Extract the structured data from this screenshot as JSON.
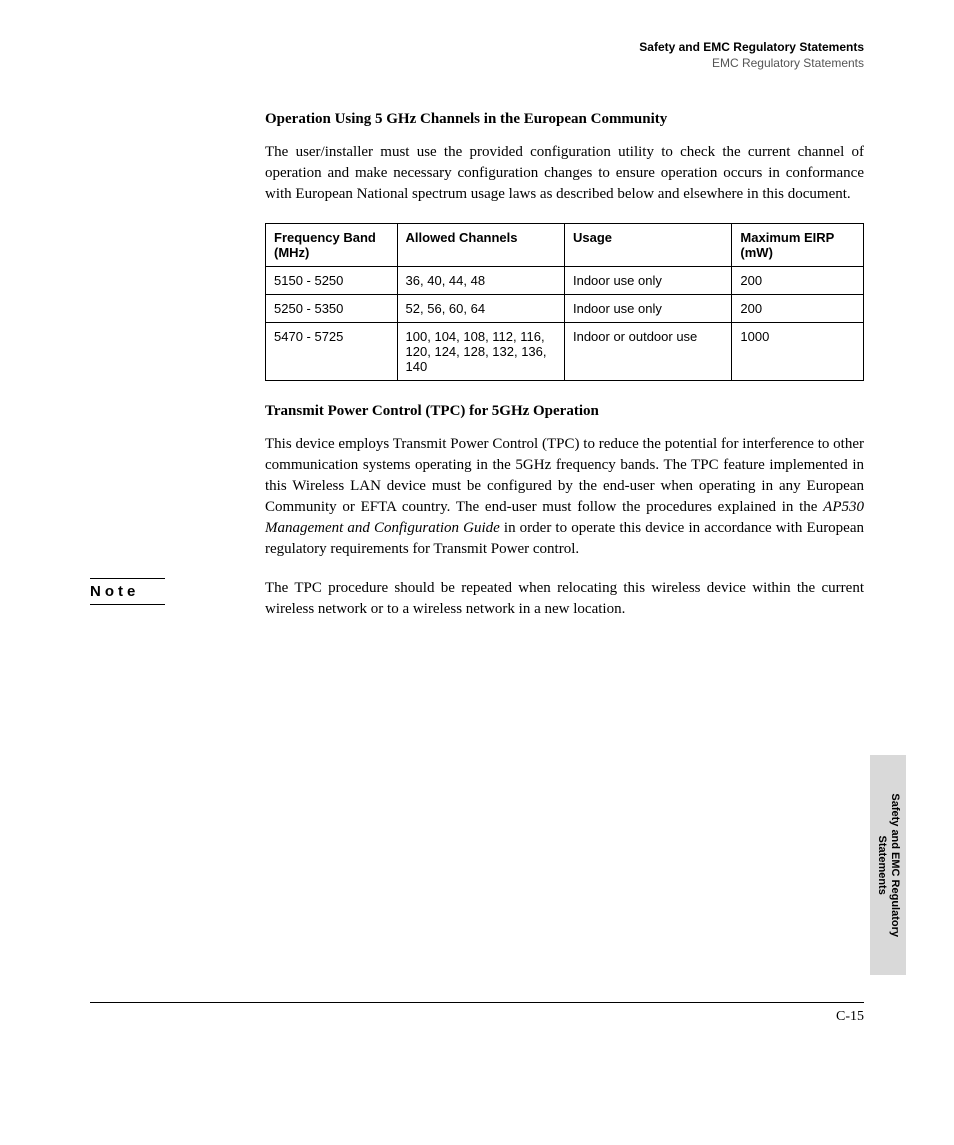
{
  "header": {
    "title": "Safety and EMC Regulatory Statements",
    "subtitle": "EMC Regulatory Statements"
  },
  "section1": {
    "heading": "Operation Using 5 GHz Channels in the European Community",
    "body": "The user/installer must use the provided configuration utility to check the current channel of operation and make necessary configuration changes to ensure operation occurs in conformance with European National spectrum usage laws as described below and elsewhere in this document."
  },
  "table": {
    "columns": [
      "Frequency Band (MHz)",
      "Allowed Channels",
      "Usage",
      "Maximum EIRP (mW)"
    ],
    "col_widths": [
      "22%",
      "28%",
      "28%",
      "22%"
    ],
    "rows": [
      [
        "5150 - 5250",
        "36, 40, 44, 48",
        "Indoor use only",
        "200"
      ],
      [
        "5250 - 5350",
        "52, 56, 60, 64",
        "Indoor use only",
        "200"
      ],
      [
        "5470 - 5725",
        "100, 104, 108, 112, 116, 120, 124, 128, 132, 136, 140",
        "Indoor or outdoor use",
        "1000"
      ]
    ],
    "border_color": "#000000",
    "header_font_weight": "bold",
    "font_family": "Arial",
    "font_size_pt": 10
  },
  "section2": {
    "heading": "Transmit Power Control (TPC) for 5GHz Operation",
    "body_pre": "This device employs Transmit Power Control (TPC) to reduce the potential for interference to other communication systems operating in the 5GHz frequency bands. The TPC feature implemented in this Wireless LAN device must be configured by the end-user when operating in any European Community or EFTA country. The end-user must follow the procedures explained in the ",
    "body_ital": "AP530 Management and Configuration Guide",
    "body_post": " in order to operate this device in accordance with European regulatory requirements for Transmit Power control."
  },
  "note": {
    "label": "Note",
    "body": "The TPC procedure should be repeated when relocating this wireless device within the current wireless network or to a wireless network in a new location."
  },
  "side_tab": {
    "line1": "Safety and EMC Regulatory",
    "line2": "Statements",
    "bg_color": "#d9d9d9"
  },
  "footer": {
    "page_number": "C-15"
  },
  "typography": {
    "body_font": "Times New Roman",
    "heading_font": "Times New Roman",
    "table_font": "Arial",
    "label_font": "Arial",
    "body_size_pt": 11,
    "heading_size_pt": 11,
    "heading_weight": "bold"
  },
  "colors": {
    "text": "#000000",
    "background": "#ffffff",
    "rule": "#000000",
    "tab_bg": "#d9d9d9",
    "header_sub": "#555555"
  }
}
